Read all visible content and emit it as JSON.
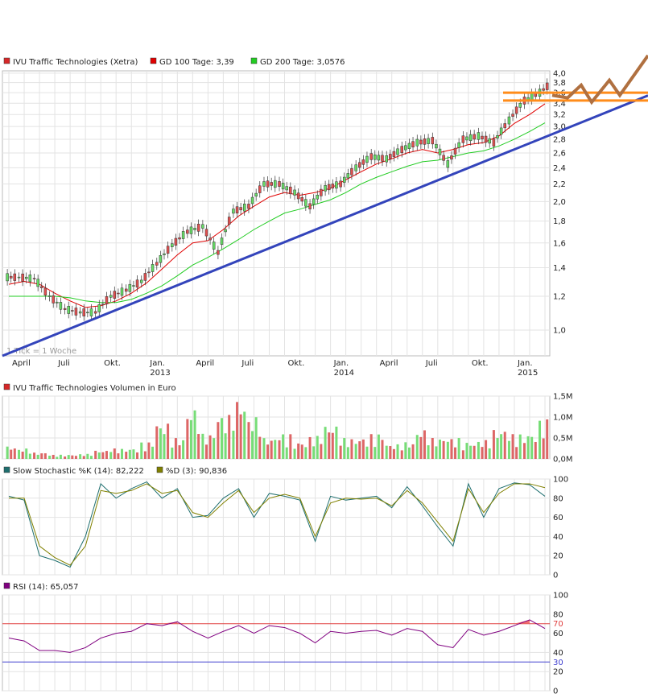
{
  "price_panel": {
    "legend": [
      {
        "label": "IVU Traffic Technologies (Xetra)",
        "color": "#d62728"
      },
      {
        "label": "GD 100 Tage: 3,39",
        "color": "#e00000"
      },
      {
        "label": "GD 200 Tage: 3,0576",
        "color": "#22cc22"
      }
    ],
    "tick_note": "1 Tick = 1 Woche",
    "y_ticks": [
      "1,0",
      "1,2",
      "1,4",
      "1,6",
      "1,8",
      "2,0",
      "2,2",
      "2,4",
      "2,6",
      "2,8",
      "3,0",
      "3,2",
      "3,4",
      "3,6",
      "3,8",
      "4,0"
    ],
    "x_month_labels": [
      "April",
      "Juli",
      "Okt.",
      "Jan.",
      "April",
      "Juli",
      "Okt.",
      "Jan.",
      "April",
      "Juli",
      "Okt.",
      "Jan."
    ],
    "x_year_labels": [
      "2013",
      "2014",
      "2015"
    ]
  },
  "volume_panel": {
    "legend": [
      {
        "label": "IVU Traffic Technologies Volumen in Euro",
        "color": "#d62728"
      }
    ],
    "y_ticks": [
      "0,0M",
      "0,5M",
      "1,0M",
      "1,5M"
    ]
  },
  "stochastic_panel": {
    "legend": [
      {
        "label": "Slow Stochastic %K (14): 82,222",
        "color": "#1f6f6f"
      },
      {
        "label": "%D (3): 90,836",
        "color": "#808000"
      }
    ],
    "y_ticks": [
      "0",
      "20",
      "40",
      "60",
      "80",
      "100"
    ]
  },
  "rsi_panel": {
    "legend": [
      {
        "label": "RSI (14): 65,057",
        "color": "#800080"
      }
    ],
    "y_ticks": [
      "0",
      "20",
      "40",
      "60",
      "80",
      "100"
    ],
    "level_labels": [
      "70",
      "30"
    ]
  },
  "chart_data": [
    {
      "type": "line",
      "title": "",
      "series_kind": "candlestick (weekly)",
      "y_scale": "log",
      "ylim": [
        0.87,
        4.05
      ],
      "x": [
        "2012-04",
        "2012-05",
        "2012-06",
        "2012-07",
        "2012-08",
        "2012-09",
        "2012-10",
        "2012-11",
        "2012-12",
        "2013-01",
        "2013-02",
        "2013-03",
        "2013-04",
        "2013-05",
        "2013-06",
        "2013-07",
        "2013-08",
        "2013-09",
        "2013-10",
        "2013-11",
        "2013-12",
        "2014-01",
        "2014-02",
        "2014-03",
        "2014-04",
        "2014-05",
        "2014-06",
        "2014-07",
        "2014-08",
        "2014-09",
        "2014-10",
        "2014-11",
        "2014-12",
        "2015-01",
        "2015-02",
        "2015-03"
      ],
      "series": [
        {
          "name": "IVU Traffic Technologies (Xetra)",
          "values": [
            1.33,
            1.32,
            1.2,
            1.12,
            1.1,
            1.1,
            1.2,
            1.24,
            1.3,
            1.43,
            1.58,
            1.7,
            1.75,
            1.52,
            1.9,
            1.95,
            2.2,
            2.2,
            2.1,
            1.95,
            2.15,
            2.2,
            2.4,
            2.55,
            2.52,
            2.65,
            2.75,
            2.78,
            2.45,
            2.8,
            2.85,
            2.75,
            3.1,
            3.45,
            3.6,
            3.85
          ]
        },
        {
          "name": "GD 100 Tage: 3,39",
          "values": [
            1.28,
            1.3,
            1.28,
            1.22,
            1.17,
            1.13,
            1.14,
            1.17,
            1.22,
            1.29,
            1.39,
            1.5,
            1.6,
            1.62,
            1.72,
            1.85,
            1.95,
            2.05,
            2.1,
            2.07,
            2.1,
            2.15,
            2.25,
            2.35,
            2.45,
            2.52,
            2.6,
            2.65,
            2.6,
            2.65,
            2.72,
            2.75,
            2.85,
            3.05,
            3.2,
            3.39
          ]
        },
        {
          "name": "GD 200 Tage: 3,0576",
          "values": [
            1.2,
            1.2,
            1.2,
            1.2,
            1.19,
            1.17,
            1.16,
            1.16,
            1.18,
            1.22,
            1.27,
            1.34,
            1.42,
            1.48,
            1.55,
            1.63,
            1.72,
            1.8,
            1.88,
            1.92,
            1.97,
            2.02,
            2.1,
            2.2,
            2.28,
            2.35,
            2.42,
            2.48,
            2.5,
            2.55,
            2.6,
            2.63,
            2.7,
            2.8,
            2.92,
            3.06
          ]
        }
      ],
      "annotations": [
        "support trendline",
        "horizontal levels 3.45 and 3.6",
        "projected zigzag"
      ]
    },
    {
      "type": "bar",
      "title": "",
      "unit": "M Euro",
      "ylim": [
        0,
        1.5
      ],
      "x": [
        "2012-04",
        "2012-05",
        "2012-06",
        "2012-07",
        "2012-08",
        "2012-09",
        "2012-10",
        "2012-11",
        "2012-12",
        "2013-01",
        "2013-02",
        "2013-03",
        "2013-04",
        "2013-05",
        "2013-06",
        "2013-07",
        "2013-08",
        "2013-09",
        "2013-10",
        "2013-11",
        "2013-12",
        "2014-01",
        "2014-02",
        "2014-03",
        "2014-04",
        "2014-05",
        "2014-06",
        "2014-07",
        "2014-08",
        "2014-09",
        "2014-10",
        "2014-11",
        "2014-12",
        "2015-01",
        "2015-02",
        "2015-03"
      ],
      "values": [
        0.3,
        0.25,
        0.15,
        0.1,
        0.1,
        0.12,
        0.2,
        0.25,
        0.25,
        0.4,
        0.85,
        0.5,
        1.2,
        0.6,
        1.05,
        1.4,
        1.0,
        0.5,
        0.6,
        0.4,
        0.55,
        0.8,
        0.5,
        0.5,
        0.6,
        0.35,
        0.4,
        0.7,
        0.5,
        0.5,
        0.4,
        0.45,
        0.7,
        0.6,
        0.6,
        0.95
      ]
    },
    {
      "type": "line",
      "title": "",
      "ylim": [
        0,
        100
      ],
      "x": [
        "2012-04",
        "2012-05",
        "2012-06",
        "2012-07",
        "2012-08",
        "2012-09",
        "2012-10",
        "2012-11",
        "2012-12",
        "2013-01",
        "2013-02",
        "2013-03",
        "2013-04",
        "2013-05",
        "2013-06",
        "2013-07",
        "2013-08",
        "2013-09",
        "2013-10",
        "2013-11",
        "2013-12",
        "2014-01",
        "2014-02",
        "2014-03",
        "2014-04",
        "2014-05",
        "2014-06",
        "2014-07",
        "2014-08",
        "2014-09",
        "2014-10",
        "2014-11",
        "2014-12",
        "2015-01",
        "2015-02",
        "2015-03"
      ],
      "series": [
        {
          "name": "Slow Stochastic %K (14): 82,222",
          "values": [
            82,
            78,
            20,
            15,
            8,
            40,
            95,
            80,
            90,
            97,
            80,
            90,
            60,
            62,
            80,
            90,
            60,
            85,
            82,
            78,
            35,
            82,
            78,
            80,
            82,
            70,
            92,
            72,
            50,
            30,
            95,
            60,
            90,
            96,
            94,
            82
          ]
        },
        {
          "name": "%D (3): 90,836",
          "values": [
            80,
            80,
            30,
            18,
            10,
            30,
            88,
            85,
            88,
            95,
            85,
            88,
            65,
            60,
            75,
            88,
            65,
            80,
            84,
            80,
            40,
            75,
            80,
            79,
            80,
            72,
            88,
            75,
            55,
            35,
            90,
            65,
            85,
            95,
            95,
            91
          ]
        }
      ]
    },
    {
      "type": "line",
      "title": "",
      "ylim": [
        0,
        100
      ],
      "x": [
        "2012-04",
        "2012-05",
        "2012-06",
        "2012-07",
        "2012-08",
        "2012-09",
        "2012-10",
        "2012-11",
        "2012-12",
        "2013-01",
        "2013-02",
        "2013-03",
        "2013-04",
        "2013-05",
        "2013-06",
        "2013-07",
        "2013-08",
        "2013-09",
        "2013-10",
        "2013-11",
        "2013-12",
        "2014-01",
        "2014-02",
        "2014-03",
        "2014-04",
        "2014-05",
        "2014-06",
        "2014-07",
        "2014-08",
        "2014-09",
        "2014-10",
        "2014-11",
        "2014-12",
        "2015-01",
        "2015-02",
        "2015-03"
      ],
      "series": [
        {
          "name": "RSI (14): 65,057",
          "values": [
            55,
            52,
            42,
            42,
            40,
            45,
            55,
            60,
            62,
            70,
            68,
            72,
            62,
            55,
            62,
            68,
            60,
            68,
            66,
            60,
            50,
            62,
            60,
            62,
            63,
            58,
            65,
            62,
            48,
            45,
            64,
            58,
            62,
            68,
            74,
            65
          ]
        }
      ],
      "levels": [
        70,
        30
      ]
    }
  ]
}
